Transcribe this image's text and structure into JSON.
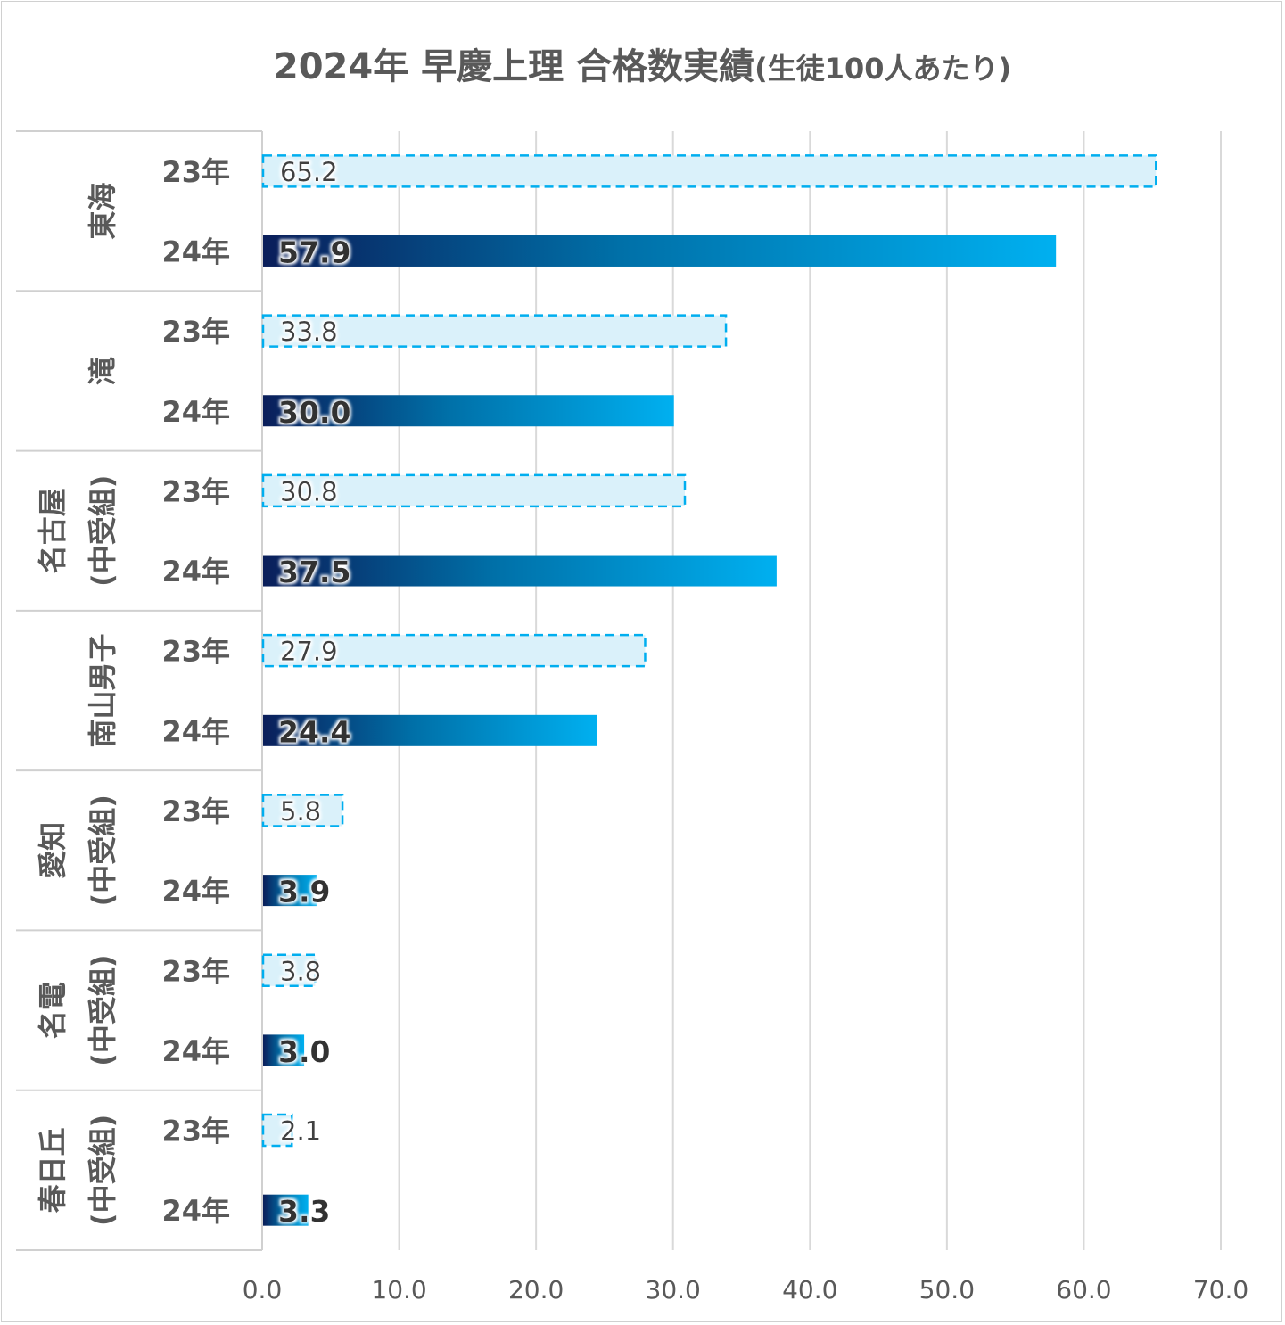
{
  "chart_data": {
    "type": "bar",
    "orientation": "horizontal",
    "title": "2024年 早慶上理 合格数実績",
    "subtitle": "(生徒100人あたり)",
    "groups": [
      {
        "name": "東海",
        "sub": ""
      },
      {
        "name": "滝",
        "sub": ""
      },
      {
        "name": "名古屋",
        "sub": "(中受組)"
      },
      {
        "name": "南山男子",
        "sub": ""
      },
      {
        "name": "愛知",
        "sub": "(中受組)"
      },
      {
        "name": "名電",
        "sub": "(中受組)"
      },
      {
        "name": "春日丘",
        "sub": "(中受組)"
      }
    ],
    "series": [
      {
        "name": "23年",
        "values": [
          65.2,
          33.8,
          30.8,
          27.9,
          5.8,
          3.8,
          2.1
        ],
        "style": "dashed-light",
        "color": "#00AEEF",
        "fill": "#DAF1FA"
      },
      {
        "name": "24年",
        "values": [
          57.9,
          30.0,
          37.5,
          24.4,
          3.9,
          3.0,
          3.3
        ],
        "style": "gradient",
        "color_start": "#0A1E5A",
        "color_end": "#00B0F0"
      }
    ],
    "xlim": [
      0,
      70
    ],
    "xticks": [
      "0.0",
      "10.0",
      "20.0",
      "30.0",
      "40.0",
      "50.0",
      "60.0",
      "70.0"
    ],
    "grid": true,
    "legend": "none"
  }
}
